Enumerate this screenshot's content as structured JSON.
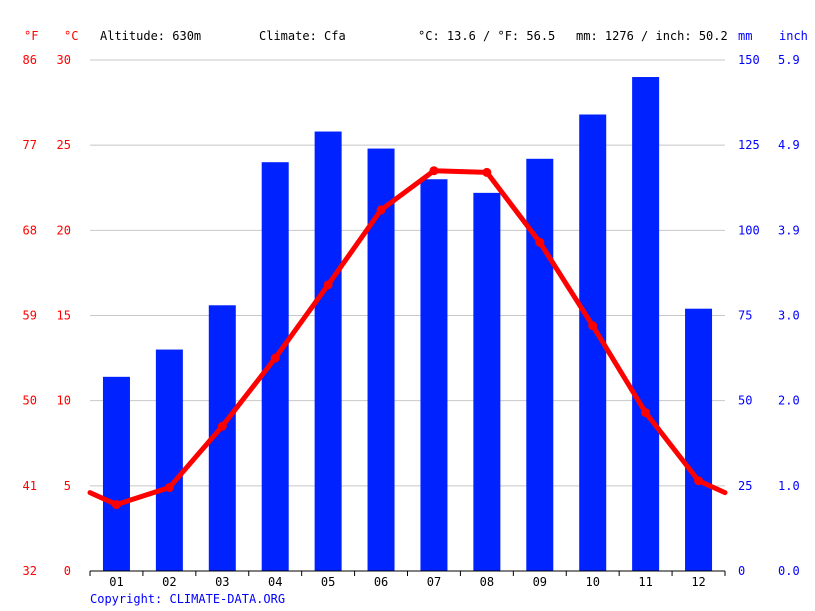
{
  "header": {
    "unit_f": "°F",
    "unit_c": "°C",
    "altitude": "Altitude: 630m",
    "climate": "Climate: Cfa",
    "avg_temp": "°C: 13.6 / °F: 56.5",
    "precip_total": "mm: 1276 / inch: 50.2",
    "unit_mm": "mm",
    "unit_inch": "inch"
  },
  "copyright": "Copyright: CLIMATE-DATA.ORG",
  "colors": {
    "temperature": "#ff0000",
    "precipitation": "#0022ff",
    "axis_text_blue": "#0000ff",
    "axis_text_red": "#ff0000",
    "grid": "#c8c8c8"
  },
  "chart_data": {
    "type": "bar+line",
    "categories": [
      "01",
      "02",
      "03",
      "04",
      "05",
      "06",
      "07",
      "08",
      "09",
      "10",
      "11",
      "12"
    ],
    "precipitation_mm": [
      57,
      65,
      78,
      120,
      129,
      124,
      115,
      111,
      121,
      134,
      145,
      77
    ],
    "temperature_c": [
      3.9,
      4.9,
      8.5,
      12.5,
      16.8,
      21.2,
      23.5,
      23.4,
      19.3,
      14.4,
      9.3,
      5.3
    ],
    "temp_line_start_c": 4.6,
    "temp_line_end_c": 4.6,
    "axes": {
      "celsius": {
        "min": 0,
        "max": 30,
        "ticks": [
          "0",
          "5",
          "10",
          "15",
          "20",
          "25",
          "30"
        ]
      },
      "fahrenheit": {
        "ticks": [
          "32",
          "41",
          "50",
          "59",
          "68",
          "77",
          "86"
        ]
      },
      "mm": {
        "min": 0,
        "max": 150,
        "ticks": [
          "0",
          "25",
          "50",
          "75",
          "100",
          "125",
          "150"
        ]
      },
      "inch": {
        "ticks": [
          "0.0",
          "1.0",
          "2.0",
          "3.0",
          "3.9",
          "4.9",
          "5.9"
        ]
      }
    },
    "grid": true
  }
}
